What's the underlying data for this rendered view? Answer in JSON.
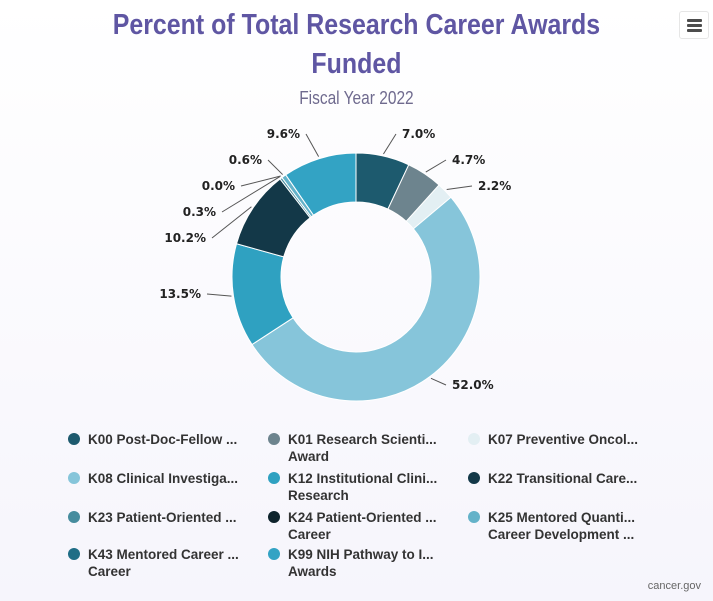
{
  "chart_data": {
    "type": "pie",
    "title_lines": [
      "Percent of Total Research Career Awards",
      "Funded"
    ],
    "subtitle": "Fiscal Year 2022",
    "slices": [
      {
        "name": "K00 Post-Doc-Fellow ...",
        "label_extra": "",
        "value": 7.0,
        "label": "7.0%",
        "color": "#1d5a6e"
      },
      {
        "name": "K01 Research Scienti...",
        "label_extra": "Award",
        "value": 4.7,
        "label": "4.7%",
        "color": "#6d848e"
      },
      {
        "name": "K07 Preventive Oncol...",
        "label_extra": "",
        "value": 2.2,
        "label": "2.2%",
        "color": "#e3eff3"
      },
      {
        "name": "K08 Clinical Investiga...",
        "label_extra": "",
        "value": 52.0,
        "label": "52.0%",
        "color": "#86c5da"
      },
      {
        "name": "K12 Institutional Clini...",
        "label_extra": "Research",
        "value": 13.5,
        "label": "13.5%",
        "color": "#2fa1c1"
      },
      {
        "name": "K22 Transitional Care...",
        "label_extra": "",
        "value": 10.2,
        "label": "10.2%",
        "color": "#133848"
      },
      {
        "name": "K23 Patient-Oriented ...",
        "label_extra": "",
        "value": 0.3,
        "label": "0.3%",
        "color": "#468c9e"
      },
      {
        "name": "K24 Patient-Oriented ...",
        "label_extra": "Career",
        "value": 0.0,
        "label": "0.0%",
        "color": "#0e232c"
      },
      {
        "name": "K25 Mentored Quanti...",
        "label_extra": "Career Development ...",
        "value": 0.6,
        "label": "0.6%",
        "color": "#64b2c9"
      },
      {
        "name": "K43 Mentored Career ...",
        "label_extra": "Career",
        "value": 0.0,
        "label": "",
        "color": "#1f6d86"
      },
      {
        "name": "K99 NIH Pathway to I...",
        "label_extra": "Awards",
        "value": 9.6,
        "label": "9.6%",
        "color": "#33a3c4"
      }
    ]
  },
  "source": "cancer.gov",
  "menu_icon": "hamburger-menu-icon"
}
